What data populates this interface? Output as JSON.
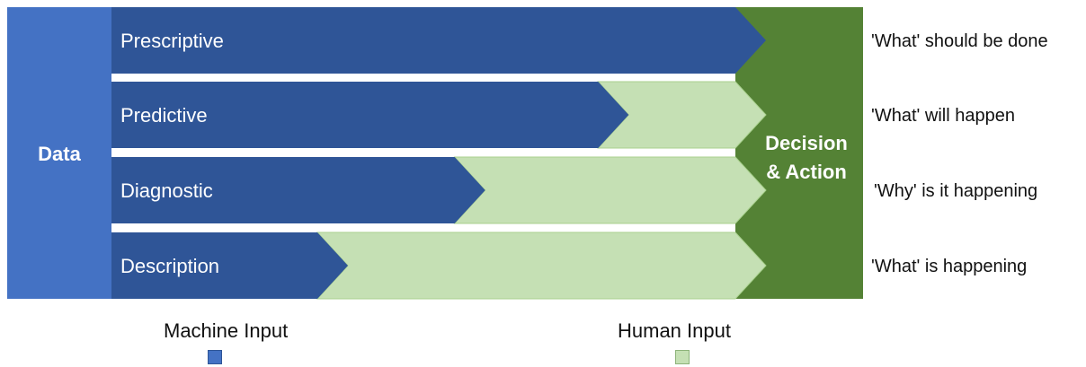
{
  "data_block": {
    "label": "Data"
  },
  "decision_block": {
    "line1": "Decision",
    "line2": "& Action"
  },
  "rows": [
    {
      "label": "Prescriptive",
      "description": "'What' should be done",
      "machine_share": 1.0
    },
    {
      "label": "Predictive",
      "description": "'What' will happen",
      "machine_share": 0.78
    },
    {
      "label": "Diagnostic",
      "description": "'Why' is it happening",
      "machine_share": 0.55
    },
    {
      "label": "Description",
      "description": "'What' is happening",
      "machine_share": 0.33
    }
  ],
  "legend": [
    {
      "label": "Machine Input",
      "color": "#4472C4",
      "border": "#2F5597"
    },
    {
      "label": "Human Input",
      "color": "#C5E0B4",
      "border": "#8DB37A"
    }
  ],
  "colors": {
    "data_block": "#4472C4",
    "machine_arrow": "#2F5597",
    "human_arrow": "#C5E0B4",
    "human_arrow_stroke": "#A9D18E",
    "decision_block": "#548235"
  }
}
